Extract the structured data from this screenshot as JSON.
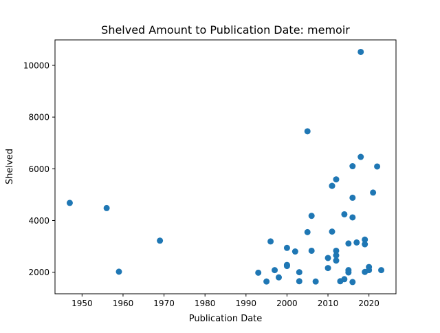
{
  "chart_data": {
    "type": "scatter",
    "title": "Shelved Amount to Publication Date: memoir",
    "xlabel": "Publication Date",
    "ylabel": "Shelved",
    "xlim": [
      1943.4,
      2026.6
    ],
    "ylim": [
      1165,
      10985
    ],
    "xticks": [
      1950,
      1960,
      1970,
      1980,
      1990,
      2000,
      2010,
      2020
    ],
    "yticks": [
      2000,
      4000,
      6000,
      8000,
      10000
    ],
    "xtick_labels": [
      "1950",
      "1960",
      "1970",
      "1980",
      "1990",
      "2000",
      "2010",
      "2020"
    ],
    "ytick_labels": [
      "2000",
      "4000",
      "6000",
      "8000",
      "10000"
    ],
    "grid": false,
    "marker_color": "#1f77b4",
    "series": [
      {
        "x": [
          1947,
          1956,
          1959,
          1969,
          1993,
          1995,
          1996,
          1997,
          1998,
          2000,
          2000,
          2000,
          2002,
          2003,
          2003,
          2005,
          2005,
          2006,
          2006,
          2007,
          2010,
          2010,
          2011,
          2011,
          2011,
          2012,
          2012,
          2012,
          2012,
          2013,
          2014,
          2014,
          2015,
          2015,
          2015,
          2016,
          2016,
          2016,
          2016,
          2017,
          2018,
          2018,
          2019,
          2019,
          2019,
          2020,
          2020,
          2021,
          2022,
          2023
        ],
        "y": [
          4680,
          4480,
          2020,
          3220,
          1980,
          1640,
          3190,
          2080,
          1800,
          2940,
          2280,
          2240,
          2800,
          2000,
          1650,
          7450,
          3550,
          4180,
          2830,
          1640,
          2550,
          2160,
          5340,
          3570,
          5340,
          5590,
          2830,
          2650,
          2450,
          1650,
          4240,
          1730,
          3110,
          2080,
          1990,
          6100,
          4880,
          4120,
          1620,
          3150,
          10520,
          6460,
          3260,
          3080,
          2010,
          2200,
          2080,
          5080,
          6090,
          2080
        ]
      }
    ]
  }
}
